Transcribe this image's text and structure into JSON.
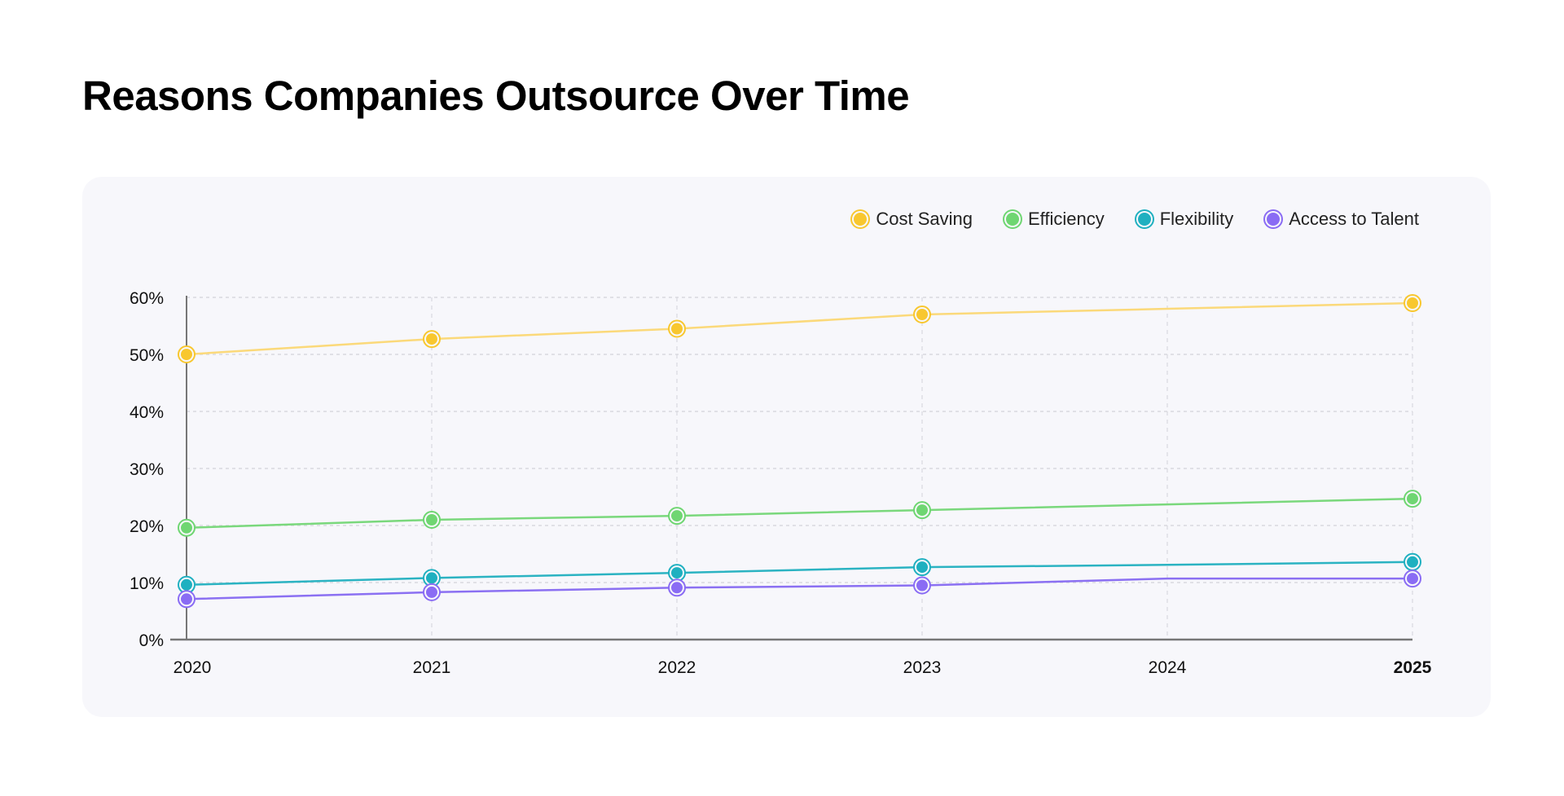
{
  "title": "Reasons Companies Outsource Over Time",
  "chart_data": {
    "type": "line",
    "title": "Reasons Companies Outsource Over Time",
    "x": [
      "2020",
      "2021",
      "2022",
      "2023",
      "2024",
      "2025"
    ],
    "x_highlight": "2025",
    "ylim": [
      0,
      60
    ],
    "yticks": [
      "0%",
      "10%",
      "20%",
      "30%",
      "40%",
      "50%",
      "60%"
    ],
    "ytick_values": [
      0,
      10,
      20,
      30,
      40,
      50,
      60
    ],
    "grid": true,
    "legend_placement": "top-right",
    "series": [
      {
        "name": "Cost Saving",
        "color": "#f8c72f",
        "line_color": "#fbd97a",
        "values": [
          50,
          52.7,
          54.5,
          57,
          58,
          59
        ],
        "markers": [
          true,
          true,
          true,
          true,
          false,
          true
        ]
      },
      {
        "name": "Efficiency",
        "color": "#6fd672",
        "line_color": "#7ad87c",
        "values": [
          19.6,
          21,
          21.7,
          22.7,
          23.7,
          24.7
        ],
        "markers": [
          true,
          true,
          true,
          true,
          false,
          true
        ]
      },
      {
        "name": "Flexibility",
        "color": "#1fb0c0",
        "line_color": "#2bb3c2",
        "values": [
          9.6,
          10.8,
          11.7,
          12.7,
          13.1,
          13.6
        ],
        "markers": [
          true,
          true,
          true,
          true,
          false,
          true
        ]
      },
      {
        "name": "Access to Talent",
        "color": "#8a6cf4",
        "line_color": "#8b70f2",
        "values": [
          7.1,
          8.3,
          9.1,
          9.5,
          10.7,
          10.7
        ],
        "markers": [
          true,
          true,
          true,
          true,
          false,
          true
        ]
      }
    ]
  }
}
